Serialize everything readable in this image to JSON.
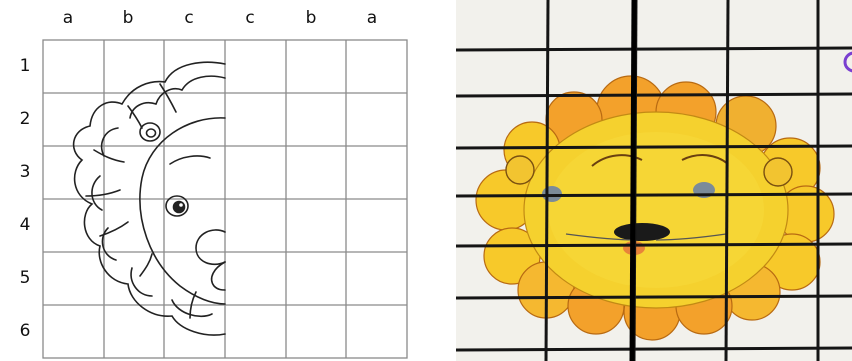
{
  "left_panel": {
    "column_labels": [
      "a",
      "b",
      "c",
      "c",
      "b",
      "a"
    ],
    "row_labels": [
      "1",
      "2",
      "3",
      "4",
      "5",
      "6"
    ]
  },
  "right_panel": {
    "colors": {
      "mane_outer": "#f3a12b",
      "mane_inner": "#f7c92a",
      "face": "#f5d12e",
      "paper": "#f2f1ec",
      "grid": "#151515"
    }
  }
}
